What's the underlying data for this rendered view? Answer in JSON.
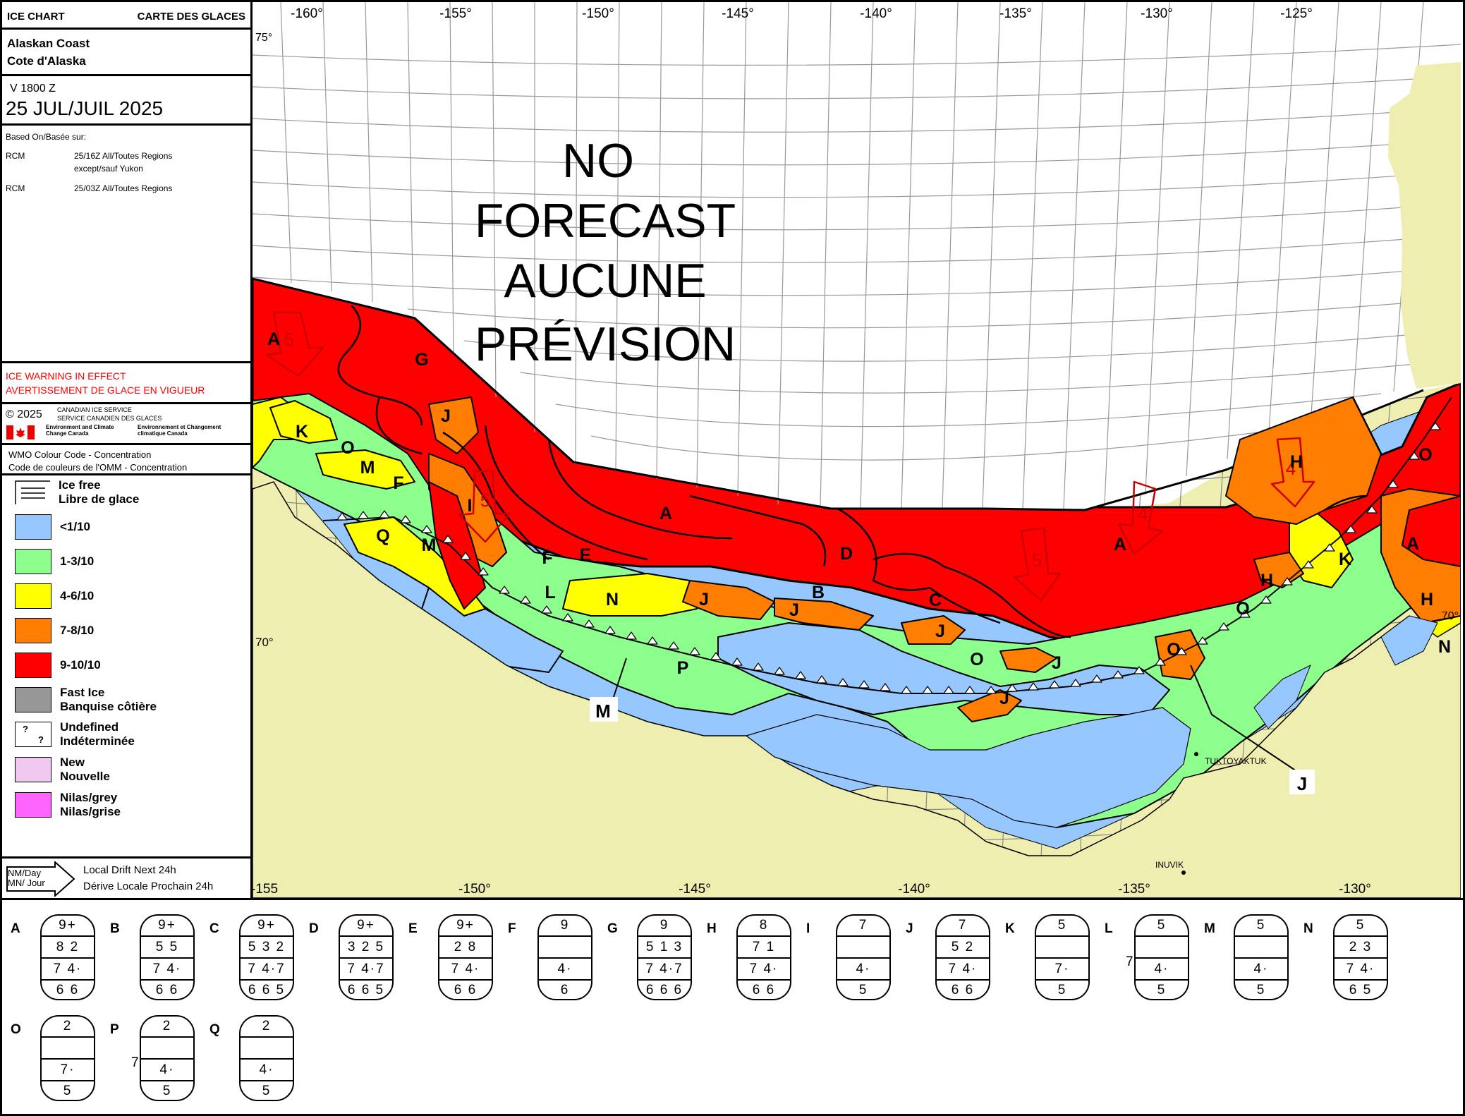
{
  "header": {
    "left": "ICE CHART",
    "right": "CARTE DES GLACES",
    "region_en": "Alaskan Coast",
    "region_fr": "Cote d'Alaska",
    "valid_time": "V 1800 Z",
    "date": "25 JUL/JUIL 2025"
  },
  "based_on": {
    "title": "Based On/Basée sur:",
    "rows": [
      {
        "source": "RCM",
        "text1": "25/16Z All/Toutes Regions",
        "text2": "except/sauf Yukon"
      },
      {
        "source": "RCM",
        "text1": "25/03Z All/Toutes Regions",
        "text2": ""
      }
    ]
  },
  "warning": {
    "en": "ICE WARNING IN EFFECT",
    "fr": "AVERTISSEMENT DE GLACE EN VIGUEUR",
    "color": "#ff0000"
  },
  "agency": {
    "copyright": "© 2025",
    "name_en": "CANADIAN ICE SERVICE",
    "name_fr": "SERVICE CANADIEN DES GLACES",
    "dept_en": "Environment and Climate Change Canada",
    "dept_fr": "Environnement et Changement climatique Canada"
  },
  "legend": {
    "title_en": "WMO Colour Code - Concentration",
    "title_fr": "Code de couleurs de l'OMM - Concentration",
    "items": [
      {
        "label1": "Ice free",
        "label2": "Libre de glace",
        "color": "#ffffff",
        "pattern": "lines"
      },
      {
        "label1": "<1/10",
        "label2": "",
        "color": "#96c8ff"
      },
      {
        "label1": "1-3/10",
        "label2": "",
        "color": "#8cff8c"
      },
      {
        "label1": "4-6/10",
        "label2": "",
        "color": "#ffff00"
      },
      {
        "label1": "7-8/10",
        "label2": "",
        "color": "#ff7d00"
      },
      {
        "label1": "9-10/10",
        "label2": "",
        "color": "#ff0000"
      },
      {
        "label1": "Fast Ice",
        "label2": "Banquise côtière",
        "color": "#969696"
      },
      {
        "label1": "Undefined",
        "label2": "Indéterminée",
        "color": "#ffffff",
        "pattern": "question"
      },
      {
        "label1": "New",
        "label2": "Nouvelle",
        "color": "#f0c8f0"
      },
      {
        "label1": "Nilas/grey",
        "label2": "Nilas/grise",
        "color": "#ff64ff"
      }
    ]
  },
  "drift": {
    "arrow_top": "NM/Day",
    "arrow_bottom": "MN/ Jour",
    "label_en": "Local Drift Next 24h",
    "label_fr": "Dérive Locale Prochain 24h"
  },
  "map": {
    "no_forecast": [
      "NO",
      "FORECAST",
      "AUCUNE",
      "PRÉVISION"
    ],
    "top_longitudes": [
      "-160°",
      "-155°",
      "-150°",
      "-145°",
      "-140°",
      "-135°",
      "-130°",
      "-125°"
    ],
    "bottom_longitudes": [
      "-155",
      "-150°",
      "-145°",
      "-140°",
      "-135°",
      "-130°"
    ],
    "lat_75": "75°",
    "lat_70_left": "70°",
    "lat_70_right": "70°",
    "place_tuktoyaktuk": "TUKTOYAKTUK",
    "place_inuvik": "INUVIK",
    "callout_m": "M",
    "callout_j": "J",
    "colors": {
      "land": "#eeeeb0",
      "ice_free": "#ffffff",
      "lt1": "#96c8ff",
      "c13": "#8cff8c",
      "c46": "#ffff00",
      "c78": "#ff7d00",
      "c910": "#ff0000"
    },
    "zone_labels": [
      {
        "id": "A"
      },
      {
        "id": "G"
      },
      {
        "id": "J"
      },
      {
        "id": "K"
      },
      {
        "id": "O"
      },
      {
        "id": "M"
      },
      {
        "id": "F"
      },
      {
        "id": "I"
      },
      {
        "id": "Q"
      },
      {
        "id": "E"
      },
      {
        "id": "L"
      },
      {
        "id": "N"
      },
      {
        "id": "B"
      },
      {
        "id": "D"
      },
      {
        "id": "C"
      },
      {
        "id": "P"
      },
      {
        "id": "H"
      }
    ],
    "drift_values": [
      "5",
      "5",
      "5",
      "4",
      "4"
    ]
  },
  "egg_codes": [
    {
      "id": "A",
      "ct": "9+",
      "partials": "8 2",
      "stages": "7 4·",
      "forms": "6 6",
      "prefix": ""
    },
    {
      "id": "B",
      "ct": "9+",
      "partials": "5 5",
      "stages": "7 4·",
      "forms": "6 6",
      "prefix": ""
    },
    {
      "id": "C",
      "ct": "9+",
      "partials": "5 3 2",
      "stages": "7 4·7",
      "forms": "6 6 5",
      "prefix": ""
    },
    {
      "id": "D",
      "ct": "9+",
      "partials": "3 2 5",
      "stages": "7 4·7",
      "forms": "6 6 5",
      "prefix": ""
    },
    {
      "id": "E",
      "ct": "9+",
      "partials": "2 8",
      "stages": "7 4·",
      "forms": "6 6",
      "prefix": ""
    },
    {
      "id": "F",
      "ct": "9",
      "partials": "",
      "stages": "4·",
      "forms": "6",
      "prefix": ""
    },
    {
      "id": "G",
      "ct": "9",
      "partials": "5 1 3",
      "stages": "7 4·7",
      "forms": "6 6 6",
      "prefix": ""
    },
    {
      "id": "H",
      "ct": "8",
      "partials": "7 1",
      "stages": "7 4·",
      "forms": "6 6",
      "prefix": ""
    },
    {
      "id": "I",
      "ct": "7",
      "partials": "",
      "stages": "4·",
      "forms": "5",
      "prefix": ""
    },
    {
      "id": "J",
      "ct": "7",
      "partials": "5 2",
      "stages": "7 4·",
      "forms": "6 6",
      "prefix": ""
    },
    {
      "id": "K",
      "ct": "5",
      "partials": "",
      "stages": "7·",
      "forms": "5",
      "prefix": ""
    },
    {
      "id": "L",
      "ct": "5",
      "partials": "",
      "stages": "4·",
      "forms": "5",
      "prefix": "7"
    },
    {
      "id": "M",
      "ct": "5",
      "partials": "",
      "stages": "4·",
      "forms": "5",
      "prefix": ""
    },
    {
      "id": "N",
      "ct": "5",
      "partials": "2 3",
      "stages": "7 4·",
      "forms": "6 5",
      "prefix": ""
    },
    {
      "id": "O",
      "ct": "2",
      "partials": "",
      "stages": "7·",
      "forms": "5",
      "prefix": ""
    },
    {
      "id": "P",
      "ct": "2",
      "partials": "",
      "stages": "4·",
      "forms": "5",
      "prefix": "7"
    },
    {
      "id": "Q",
      "ct": "2",
      "partials": "",
      "stages": "4·",
      "forms": "5",
      "prefix": ""
    }
  ]
}
